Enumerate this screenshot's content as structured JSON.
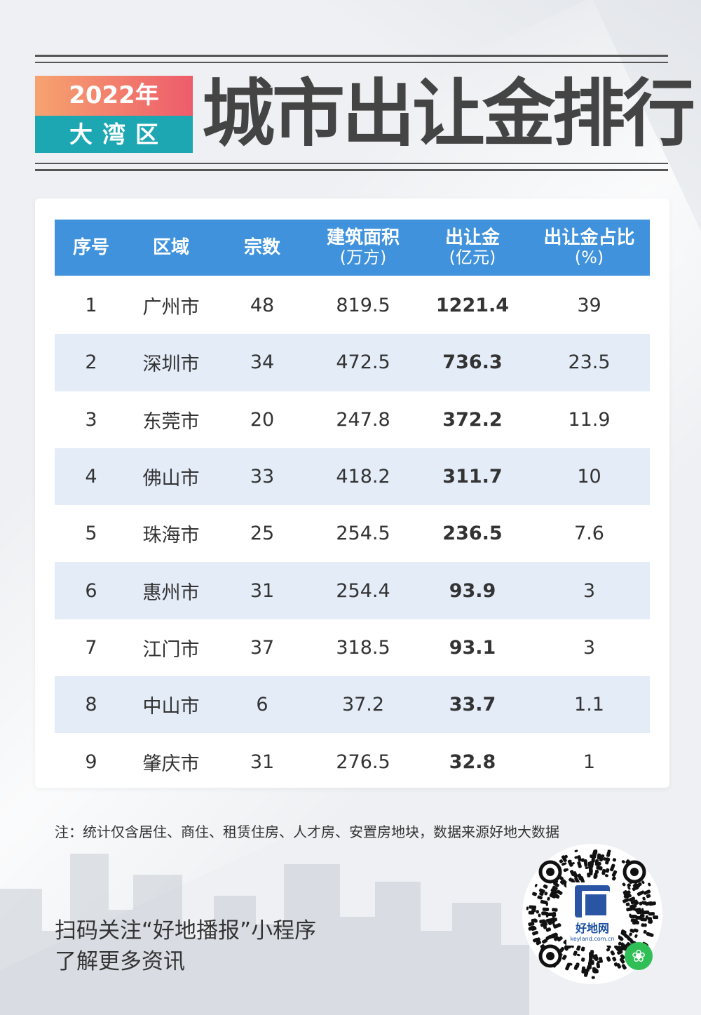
{
  "header": {
    "year": "2022年",
    "region": "大湾区",
    "title": "城市出让金排行"
  },
  "table": {
    "columns": [
      {
        "label": "序号",
        "sub": ""
      },
      {
        "label": "区域",
        "sub": ""
      },
      {
        "label": "宗数",
        "sub": ""
      },
      {
        "label": "建筑面积",
        "sub": "(万方)"
      },
      {
        "label": "出让金",
        "sub": "(亿元)"
      },
      {
        "label": "出让金占比",
        "sub": "(%)"
      }
    ],
    "rows": [
      [
        "1",
        "广州市",
        "48",
        "819.5",
        "1221.4",
        "39"
      ],
      [
        "2",
        "深圳市",
        "34",
        "472.5",
        "736.3",
        "23.5"
      ],
      [
        "3",
        "东莞市",
        "20",
        "247.8",
        "372.2",
        "11.9"
      ],
      [
        "4",
        "佛山市",
        "33",
        "418.2",
        "311.7",
        "10"
      ],
      [
        "5",
        "珠海市",
        "25",
        "254.5",
        "236.5",
        "7.6"
      ],
      [
        "6",
        "惠州市",
        "31",
        "254.4",
        "93.9",
        "3"
      ],
      [
        "7",
        "江门市",
        "37",
        "318.5",
        "93.1",
        "3"
      ],
      [
        "8",
        "中山市",
        "6",
        "37.2",
        "33.7",
        "1.1"
      ],
      [
        "9",
        "肇庆市",
        "31",
        "276.5",
        "32.8",
        "1"
      ]
    ]
  },
  "note": "注：统计仅含居住、商住、租赁住房、人才房、安置房地块，数据来源好地大数据",
  "cta": {
    "line1": "扫码关注“好地播报”小程序",
    "line2": "了解更多资讯"
  },
  "qr": {
    "brand": "好地网",
    "url": "keyland.com.cn"
  },
  "colors": {
    "header_blue": "#3f92db",
    "row_alt": "#e4ecf8",
    "year_badge": "#ee5c6b",
    "region_badge": "#1da7b3"
  }
}
